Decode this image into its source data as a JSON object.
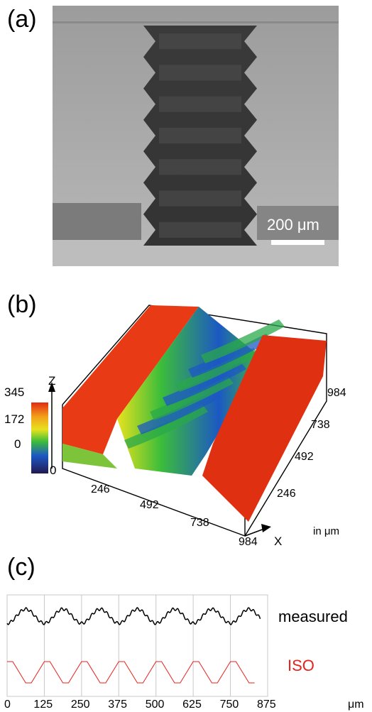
{
  "panels": {
    "a": {
      "label": "(a)",
      "scale_bar": "200 μm"
    },
    "b": {
      "label": "(b)",
      "colorbar_ticks": [
        "345",
        "172",
        "0"
      ],
      "z_axis": {
        "label": "Z",
        "origin": "0"
      },
      "x_axis": {
        "label": "X",
        "ticks": [
          "246",
          "492",
          "738",
          "984"
        ]
      },
      "y_axis": {
        "ticks": [
          "246",
          "492",
          "738",
          "984"
        ]
      },
      "unit": "in μm"
    },
    "c": {
      "label": "(c)",
      "unit": "μm",
      "series_labels": {
        "measured": "measured",
        "iso": "ISO"
      }
    }
  },
  "colors": {
    "iso": "#e8201b",
    "measured": "#000000",
    "grid": "#c8c8c8"
  },
  "chart_data": {
    "type": "line",
    "x_ticks": [
      "0",
      "125",
      "250",
      "375",
      "500",
      "625",
      "750",
      "875"
    ],
    "xlim": [
      0,
      875
    ],
    "grid": true,
    "series": [
      {
        "name": "measured",
        "period": 125,
        "shape": "rounded-wave"
      },
      {
        "name": "ISO",
        "period": 125,
        "shape": "trapezoid"
      }
    ]
  }
}
